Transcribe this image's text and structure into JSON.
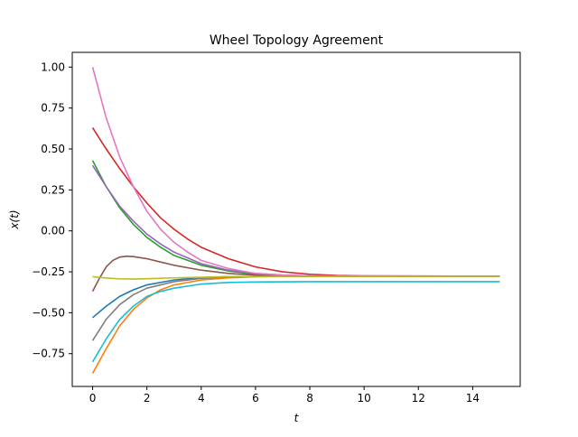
{
  "chart_data": {
    "type": "line",
    "title": "Wheel Topology Agreement",
    "xlabel": "t",
    "ylabel": "x(t)",
    "xlim": [
      -0.75,
      15.75
    ],
    "ylim": [
      -0.95,
      1.09
    ],
    "xticks": [
      0,
      2,
      4,
      6,
      8,
      10,
      12,
      14
    ],
    "yticks": [
      -0.75,
      -0.5,
      -0.25,
      0.0,
      0.25,
      0.5,
      0.75,
      1.0
    ],
    "ytick_labels": [
      "−0.75",
      "−0.50",
      "−0.25",
      "0.00",
      "0.25",
      "0.50",
      "0.75",
      "1.00"
    ],
    "grid": false,
    "legend": "none",
    "series": [
      {
        "color": "#1f77b4",
        "points": [
          [
            0,
            -0.53
          ],
          [
            0.5,
            -0.46
          ],
          [
            1,
            -0.4
          ],
          [
            1.5,
            -0.36
          ],
          [
            2,
            -0.33
          ],
          [
            3,
            -0.3
          ],
          [
            4,
            -0.285
          ],
          [
            5,
            -0.28
          ],
          [
            6,
            -0.278
          ],
          [
            8,
            -0.277
          ],
          [
            15,
            -0.277
          ]
        ]
      },
      {
        "color": "#ff7f0e",
        "points": [
          [
            0,
            -0.87
          ],
          [
            0.5,
            -0.72
          ],
          [
            1,
            -0.58
          ],
          [
            1.5,
            -0.48
          ],
          [
            2,
            -0.41
          ],
          [
            2.5,
            -0.36
          ],
          [
            3,
            -0.33
          ],
          [
            4,
            -0.3
          ],
          [
            5,
            -0.287
          ],
          [
            6,
            -0.28
          ],
          [
            8,
            -0.278
          ],
          [
            15,
            -0.278
          ]
        ]
      },
      {
        "color": "#2ca02c",
        "points": [
          [
            0,
            0.43
          ],
          [
            0.5,
            0.27
          ],
          [
            1,
            0.14
          ],
          [
            1.5,
            0.04
          ],
          [
            2,
            -0.04
          ],
          [
            2.5,
            -0.1
          ],
          [
            3,
            -0.15
          ],
          [
            4,
            -0.21
          ],
          [
            5,
            -0.245
          ],
          [
            6,
            -0.265
          ],
          [
            7,
            -0.272
          ],
          [
            8,
            -0.276
          ],
          [
            15,
            -0.277
          ]
        ]
      },
      {
        "color": "#d62728",
        "points": [
          [
            0,
            0.63
          ],
          [
            0.5,
            0.5
          ],
          [
            1,
            0.38
          ],
          [
            1.5,
            0.27
          ],
          [
            2,
            0.17
          ],
          [
            2.5,
            0.08
          ],
          [
            3,
            0.01
          ],
          [
            3.5,
            -0.05
          ],
          [
            4,
            -0.1
          ],
          [
            5,
            -0.17
          ],
          [
            6,
            -0.22
          ],
          [
            7,
            -0.25
          ],
          [
            8,
            -0.265
          ],
          [
            9,
            -0.272
          ],
          [
            10,
            -0.275
          ],
          [
            15,
            -0.277
          ]
        ]
      },
      {
        "color": "#9467bd",
        "points": [
          [
            0,
            0.4
          ],
          [
            0.5,
            0.27
          ],
          [
            1,
            0.15
          ],
          [
            1.5,
            0.06
          ],
          [
            2,
            -0.02
          ],
          [
            2.5,
            -0.08
          ],
          [
            3,
            -0.13
          ],
          [
            4,
            -0.2
          ],
          [
            5,
            -0.24
          ],
          [
            6,
            -0.26
          ],
          [
            7,
            -0.27
          ],
          [
            8,
            -0.275
          ],
          [
            15,
            -0.277
          ]
        ]
      },
      {
        "color": "#8c564b",
        "points": [
          [
            0,
            -0.37
          ],
          [
            0.25,
            -0.29
          ],
          [
            0.5,
            -0.22
          ],
          [
            0.75,
            -0.18
          ],
          [
            1,
            -0.16
          ],
          [
            1.25,
            -0.155
          ],
          [
            1.5,
            -0.157
          ],
          [
            2,
            -0.17
          ],
          [
            2.5,
            -0.19
          ],
          [
            3,
            -0.21
          ],
          [
            4,
            -0.24
          ],
          [
            5,
            -0.26
          ],
          [
            6,
            -0.27
          ],
          [
            7,
            -0.275
          ],
          [
            8,
            -0.277
          ],
          [
            15,
            -0.277
          ]
        ]
      },
      {
        "color": "#e377c2",
        "points": [
          [
            0,
            1.0
          ],
          [
            0.5,
            0.69
          ],
          [
            1,
            0.45
          ],
          [
            1.5,
            0.27
          ],
          [
            2,
            0.12
          ],
          [
            2.5,
            0.01
          ],
          [
            3,
            -0.07
          ],
          [
            3.5,
            -0.13
          ],
          [
            4,
            -0.18
          ],
          [
            5,
            -0.23
          ],
          [
            6,
            -0.26
          ],
          [
            7,
            -0.27
          ],
          [
            8,
            -0.275
          ],
          [
            15,
            -0.277
          ]
        ]
      },
      {
        "color": "#7f7f7f",
        "points": [
          [
            0,
            -0.67
          ],
          [
            0.5,
            -0.54
          ],
          [
            1,
            -0.45
          ],
          [
            1.5,
            -0.39
          ],
          [
            2,
            -0.35
          ],
          [
            3,
            -0.31
          ],
          [
            4,
            -0.29
          ],
          [
            5,
            -0.282
          ],
          [
            6,
            -0.279
          ],
          [
            8,
            -0.277
          ],
          [
            15,
            -0.277
          ]
        ]
      },
      {
        "color": "#bcbd22",
        "points": [
          [
            0,
            -0.28
          ],
          [
            0.5,
            -0.288
          ],
          [
            1,
            -0.293
          ],
          [
            1.5,
            -0.294
          ],
          [
            2,
            -0.292
          ],
          [
            3,
            -0.287
          ],
          [
            4,
            -0.283
          ],
          [
            5,
            -0.28
          ],
          [
            7,
            -0.278
          ],
          [
            15,
            -0.277
          ]
        ]
      },
      {
        "color": "#17becf",
        "points": [
          [
            0,
            -0.8
          ],
          [
            0.5,
            -0.66
          ],
          [
            1,
            -0.54
          ],
          [
            1.5,
            -0.46
          ],
          [
            2,
            -0.4
          ],
          [
            2.5,
            -0.37
          ],
          [
            3,
            -0.35
          ],
          [
            4,
            -0.325
          ],
          [
            5,
            -0.315
          ],
          [
            6,
            -0.312
          ],
          [
            8,
            -0.31
          ],
          [
            15,
            -0.31
          ]
        ]
      }
    ]
  }
}
